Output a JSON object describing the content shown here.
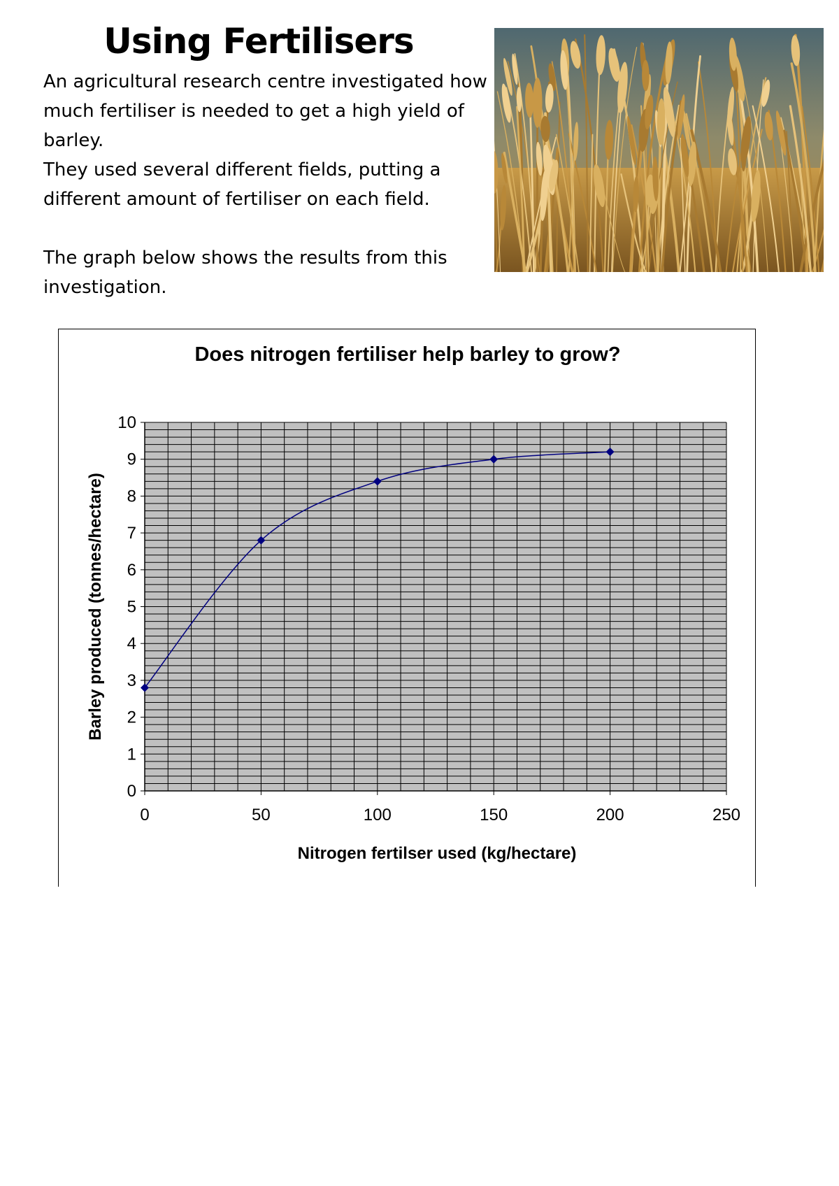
{
  "document": {
    "title": "Using Fertilisers",
    "intro_paragraphs": [
      "An agricultural research centre investigated how much fertiliser is needed to get a high yield of barley.",
      "They used several different fields, putting a different amount of fertiliser on each field."
    ],
    "closing_paragraph": "The graph below shows the results from this investigation.",
    "photo_subject": "barley-field-photo"
  },
  "chart_data": {
    "type": "line",
    "title": "Does nitrogen fertiliser help barley to grow?",
    "xlabel": "Nitrogen fertilser used (kg/hectare)",
    "ylabel": "Barley produced (tonnes/hectare)",
    "xlim": [
      0,
      250
    ],
    "ylim": [
      0,
      10
    ],
    "x_ticks": [
      0,
      50,
      100,
      150,
      200,
      250
    ],
    "y_ticks": [
      0,
      1,
      2,
      3,
      4,
      5,
      6,
      7,
      8,
      9,
      10
    ],
    "x_minor_step": 10,
    "y_minor_step": 0.2,
    "grid": true,
    "smoothed": true,
    "plot_background": "#c0c0c0",
    "line_color": "#000080",
    "series": [
      {
        "x": [
          0,
          50,
          100,
          150,
          200
        ],
        "y": [
          2.8,
          6.8,
          8.4,
          9.0,
          9.2
        ]
      }
    ]
  }
}
